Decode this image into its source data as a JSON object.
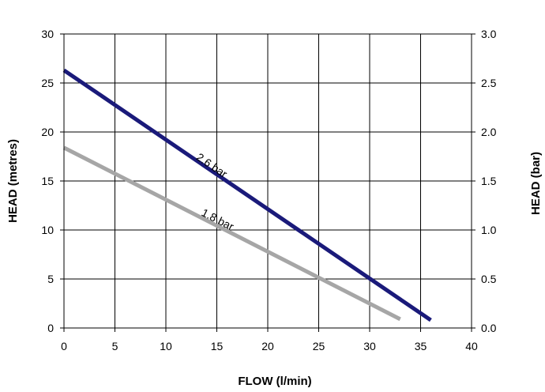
{
  "chart_data": {
    "type": "line",
    "title": "",
    "xlabel": "FLOW (l/min)",
    "ylabel": "HEAD (metres)",
    "y2label": "HEAD (bar)",
    "xlim": [
      0,
      40
    ],
    "ylim": [
      0,
      30
    ],
    "y2lim": [
      0,
      3.0
    ],
    "xticks": [
      "0",
      "5",
      "10",
      "15",
      "20",
      "25",
      "30",
      "35",
      "40"
    ],
    "yticks": [
      "0",
      "5",
      "10",
      "15",
      "20",
      "25",
      "30"
    ],
    "y2ticks": [
      "0.0",
      "0.5",
      "1.0",
      "1.5",
      "2.0",
      "2.5",
      "3.0"
    ],
    "grid": true,
    "legend": "none",
    "series": [
      {
        "name": "2.6 bar",
        "color": "#1a1a7a",
        "x": [
          0,
          36
        ],
        "y": [
          26.3,
          0.8
        ]
      },
      {
        "name": "1.8 bar",
        "color": "#a6a6a6",
        "x": [
          0,
          33
        ],
        "y": [
          18.4,
          0.9
        ]
      }
    ]
  }
}
